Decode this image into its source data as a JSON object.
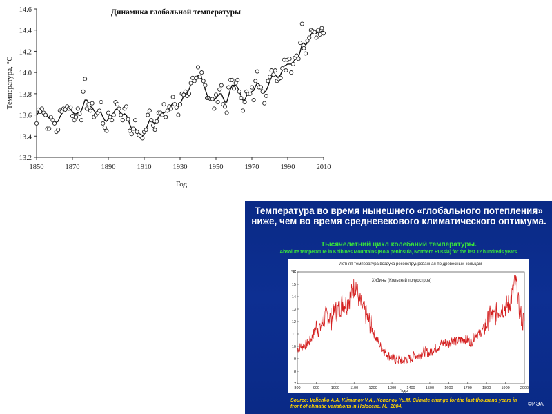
{
  "chart_data": [
    {
      "type": "line",
      "title": "Динамика глобальной температуры",
      "xlabel": "Год",
      "ylabel": "Температура, °С",
      "xlim": [
        1850,
        2010
      ],
      "ylim": [
        13.2,
        14.6
      ],
      "x_ticks": [
        "1850",
        "1870",
        "1890",
        "1910",
        "1930",
        "1950",
        "1970",
        "1990",
        "2010"
      ],
      "y_ticks": [
        "13.2",
        "13.4",
        "13.6",
        "13.8",
        "14.0",
        "14.2",
        "14.4",
        "14.6"
      ],
      "grid": false,
      "series": [
        {
          "style": "markers",
          "x": [
            1850,
            1851,
            1852,
            1853,
            1854,
            1855,
            1856,
            1857,
            1858,
            1859,
            1860,
            1861,
            1862,
            1863,
            1864,
            1865,
            1866,
            1867,
            1868,
            1869,
            1870,
            1871,
            1872,
            1873,
            1874,
            1875,
            1876,
            1877,
            1878,
            1879,
            1880,
            1881,
            1882,
            1883,
            1884,
            1885,
            1886,
            1887,
            1888,
            1889,
            1890,
            1891,
            1892,
            1893,
            1894,
            1895,
            1896,
            1897,
            1898,
            1899,
            1900,
            1901,
            1902,
            1903,
            1904,
            1905,
            1906,
            1907,
            1908,
            1909,
            1910,
            1911,
            1912,
            1913,
            1914,
            1915,
            1916,
            1917,
            1918,
            1919,
            1920,
            1921,
            1922,
            1923,
            1924,
            1925,
            1926,
            1927,
            1928,
            1929,
            1930,
            1931,
            1932,
            1933,
            1934,
            1935,
            1936,
            1937,
            1938,
            1939,
            1940,
            1941,
            1942,
            1943,
            1944,
            1945,
            1946,
            1947,
            1948,
            1949,
            1950,
            1951,
            1952,
            1953,
            1954,
            1955,
            1956,
            1957,
            1958,
            1959,
            1960,
            1961,
            1962,
            1963,
            1964,
            1965,
            1966,
            1967,
            1968,
            1969,
            1970,
            1971,
            1972,
            1973,
            1974,
            1975,
            1976,
            1977,
            1978,
            1979,
            1980,
            1981,
            1982,
            1983,
            1984,
            1985,
            1986,
            1987,
            1988,
            1989,
            1990,
            1991,
            1992,
            1993,
            1994,
            1995,
            1996,
            1997,
            1998,
            1999,
            2000,
            2001,
            2002,
            2003,
            2004,
            2005,
            2006,
            2007,
            2008,
            2009,
            2010
          ],
          "values": [
            13.52,
            13.65,
            13.63,
            13.66,
            13.62,
            13.6,
            13.47,
            13.47,
            13.58,
            13.55,
            13.52,
            13.44,
            13.46,
            13.64,
            13.63,
            13.66,
            13.65,
            13.68,
            13.66,
            13.67,
            13.59,
            13.55,
            13.58,
            13.66,
            13.61,
            13.55,
            13.82,
            13.94,
            13.66,
            13.7,
            13.64,
            13.71,
            13.58,
            13.6,
            13.62,
            13.64,
            13.72,
            13.52,
            13.48,
            13.45,
            13.62,
            13.58,
            13.55,
            13.6,
            13.72,
            13.7,
            13.66,
            13.6,
            13.55,
            13.66,
            13.68,
            13.56,
            13.45,
            13.42,
            13.47,
            13.55,
            13.44,
            13.41,
            13.4,
            13.38,
            13.44,
            13.46,
            13.6,
            13.64,
            13.55,
            13.5,
            13.46,
            13.54,
            13.62,
            13.62,
            13.6,
            13.7,
            13.58,
            13.64,
            13.68,
            13.66,
            13.77,
            13.7,
            13.67,
            13.6,
            13.7,
            13.8,
            13.79,
            13.82,
            13.78,
            13.8,
            13.9,
            13.95,
            13.92,
            13.95,
            14.05,
            13.96,
            14.0,
            13.92,
            13.88,
            13.76,
            13.76,
            13.75,
            13.75,
            13.66,
            13.79,
            13.72,
            13.84,
            13.88,
            13.7,
            13.68,
            13.62,
            13.86,
            13.93,
            13.93,
            13.85,
            13.9,
            13.93,
            13.82,
            13.76,
            13.64,
            13.72,
            13.82,
            13.8,
            13.8,
            13.86,
            13.74,
            13.92,
            14.01,
            13.86,
            13.86,
            13.82,
            13.71,
            13.78,
            13.92,
            13.96,
            14.02,
            13.98,
            14.02,
            13.92,
            13.94,
            13.95,
            14.04,
            14.12,
            14.02,
            14.12,
            14.13,
            14.0,
            14.08,
            14.14,
            14.16,
            14.13,
            14.28,
            14.46,
            14.23,
            14.18,
            14.3,
            14.33,
            14.4,
            14.39,
            14.38,
            14.33,
            14.4,
            14.36,
            14.42,
            14.37
          ]
        },
        {
          "style": "line",
          "x": [
            1850,
            1851,
            1852,
            1853,
            1854,
            1855,
            1856,
            1857,
            1858,
            1859,
            1860,
            1861,
            1862,
            1863,
            1864,
            1865,
            1866,
            1867,
            1868,
            1869,
            1870,
            1871,
            1872,
            1873,
            1874,
            1875,
            1876,
            1877,
            1878,
            1879,
            1880,
            1881,
            1882,
            1883,
            1884,
            1885,
            1886,
            1887,
            1888,
            1889,
            1890,
            1891,
            1892,
            1893,
            1894,
            1895,
            1896,
            1897,
            1898,
            1899,
            1900,
            1901,
            1902,
            1903,
            1904,
            1905,
            1906,
            1907,
            1908,
            1909,
            1910,
            1911,
            1912,
            1913,
            1914,
            1915,
            1916,
            1917,
            1918,
            1919,
            1920,
            1921,
            1922,
            1923,
            1924,
            1925,
            1926,
            1927,
            1928,
            1929,
            1930,
            1931,
            1932,
            1933,
            1934,
            1935,
            1936,
            1937,
            1938,
            1939,
            1940,
            1941,
            1942,
            1943,
            1944,
            1945,
            1946,
            1947,
            1948,
            1949,
            1950,
            1951,
            1952,
            1953,
            1954,
            1955,
            1956,
            1957,
            1958,
            1959,
            1960,
            1961,
            1962,
            1963,
            1964,
            1965,
            1966,
            1967,
            1968,
            1969,
            1970,
            1971,
            1972,
            1973,
            1974,
            1975,
            1976,
            1977,
            1978,
            1979,
            1980,
            1981,
            1982,
            1983,
            1984,
            1985,
            1986,
            1987,
            1988,
            1989,
            1990,
            1991,
            1992,
            1993,
            1994,
            1995,
            1996,
            1997,
            1998,
            1999,
            2000,
            2001,
            2002,
            2003,
            2004,
            2005,
            2006,
            2007,
            2008,
            2009,
            2010
          ],
          "values": [
            13.6,
            13.62,
            13.62,
            13.63,
            13.63,
            13.62,
            13.59,
            13.57,
            13.57,
            13.56,
            13.54,
            13.53,
            13.54,
            13.58,
            13.61,
            13.64,
            13.65,
            13.66,
            13.66,
            13.65,
            13.63,
            13.61,
            13.61,
            13.62,
            13.62,
            13.64,
            13.69,
            13.74,
            13.74,
            13.71,
            13.68,
            13.67,
            13.64,
            13.62,
            13.62,
            13.63,
            13.62,
            13.58,
            13.55,
            13.54,
            13.56,
            13.58,
            13.6,
            13.62,
            13.65,
            13.66,
            13.64,
            13.61,
            13.6,
            13.61,
            13.6,
            13.56,
            13.51,
            13.47,
            13.46,
            13.47,
            13.45,
            13.42,
            13.4,
            13.4,
            13.42,
            13.46,
            13.51,
            13.55,
            13.55,
            13.53,
            13.52,
            13.54,
            13.58,
            13.61,
            13.62,
            13.62,
            13.63,
            13.65,
            13.67,
            13.69,
            13.71,
            13.7,
            13.68,
            13.68,
            13.7,
            13.74,
            13.78,
            13.8,
            13.81,
            13.84,
            13.89,
            13.92,
            13.94,
            13.95,
            13.97,
            13.97,
            13.95,
            13.9,
            13.84,
            13.79,
            13.76,
            13.75,
            13.74,
            13.74,
            13.76,
            13.78,
            13.8,
            13.8,
            13.76,
            13.72,
            13.72,
            13.78,
            13.84,
            13.88,
            13.88,
            13.88,
            13.86,
            13.82,
            13.78,
            13.74,
            13.74,
            13.78,
            13.8,
            13.81,
            13.82,
            13.83,
            13.87,
            13.9,
            13.89,
            13.86,
            13.83,
            13.81,
            13.83,
            13.87,
            13.92,
            13.96,
            13.98,
            13.98,
            13.96,
            13.96,
            13.98,
            14.02,
            14.06,
            14.07,
            14.08,
            14.08,
            14.08,
            14.1,
            14.12,
            14.13,
            14.15,
            14.2,
            14.27,
            14.28,
            14.26,
            14.28,
            14.32,
            14.36,
            14.38,
            14.38,
            14.37,
            14.38,
            14.38,
            14.39,
            14.39
          ]
        }
      ]
    },
    {
      "type": "line",
      "title": "Летняя температура воздуха реконструированная по древесным кольцам",
      "annotation": "Хибины (Кольский полуостров)",
      "xlabel": "Годы",
      "ylabel": "°С",
      "xlim": [
        800,
        2000
      ],
      "ylim": [
        7,
        16
      ],
      "x_ticks": [
        "800",
        "900",
        "1000",
        "1100",
        "1200",
        "1300",
        "1400",
        "1500",
        "1600",
        "1700",
        "1800",
        "1900",
        "2000"
      ],
      "y_ticks": [
        "7",
        "8",
        "9",
        "10",
        "11",
        "12",
        "13",
        "14",
        "15",
        "16"
      ],
      "color": "#d42020",
      "series": [
        {
          "x": [
            800,
            820,
            840,
            860,
            880,
            900,
            920,
            940,
            960,
            980,
            1000,
            1020,
            1040,
            1060,
            1080,
            1100,
            1110,
            1120,
            1140,
            1160,
            1180,
            1200,
            1220,
            1240,
            1260,
            1280,
            1300,
            1320,
            1340,
            1360,
            1380,
            1400,
            1420,
            1440,
            1460,
            1480,
            1500,
            1520,
            1540,
            1560,
            1580,
            1600,
            1620,
            1640,
            1660,
            1680,
            1700,
            1720,
            1740,
            1760,
            1780,
            1800,
            1820,
            1840,
            1860,
            1880,
            1900,
            1920,
            1940,
            1950,
            1960,
            1970,
            1980,
            1990,
            2000
          ],
          "values": [
            9.8,
            10.0,
            10.1,
            10.3,
            10.8,
            11.6,
            11.5,
            12.2,
            12.5,
            12.2,
            12.8,
            13.0,
            13.6,
            13.4,
            14.0,
            14.8,
            15.0,
            14.1,
            13.2,
            12.6,
            12.0,
            11.2,
            10.6,
            10.0,
            9.6,
            9.3,
            9.1,
            8.9,
            8.9,
            8.8,
            9.0,
            9.0,
            9.3,
            9.2,
            9.5,
            9.6,
            9.4,
            9.8,
            9.9,
            10.2,
            10.3,
            10.2,
            10.6,
            10.4,
            10.5,
            10.6,
            10.5,
            10.3,
            11.0,
            11.0,
            11.3,
            11.8,
            12.5,
            12.3,
            12.9,
            13.0,
            13.2,
            13.4,
            14.4,
            15.2,
            14.8,
            13.2,
            12.6,
            12.0,
            12.1
          ]
        }
      ]
    }
  ],
  "panel": {
    "title": "Температура во время нынешнего «глобального потепления» ниже, чем во время средневекового климатического оптимума.",
    "subtitle": "Тысячелетний цикл колебаний температуры.",
    "subtitle_en": "Absolute temperature in Khibines Mountains (Kola peninsula, Northern Russia) for the last 12 hundreds years.",
    "source": "Source: Velichko A.A, Klimanov V.A., Kononov Yu.M. Climate change for the last thousand years in front of climatic variations in Holocene. M., 2004.",
    "copyright": "©ИЭА",
    "colors": {
      "background": "#0b2c8a",
      "title": "#ffffff",
      "subtitle": "#37e23b",
      "source": "#ffd400"
    }
  }
}
